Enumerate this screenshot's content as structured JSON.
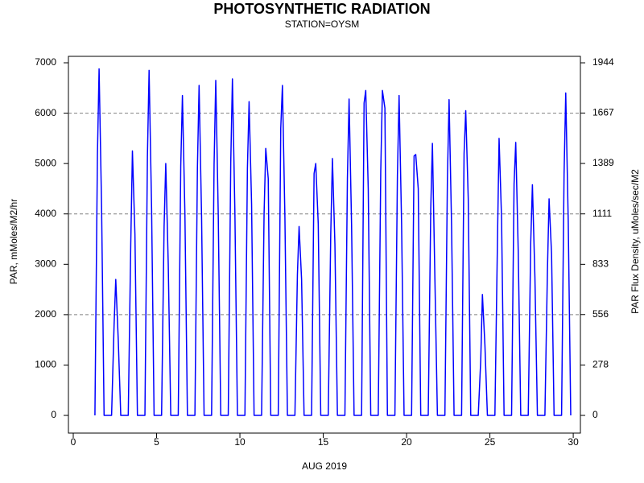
{
  "chart_data": {
    "type": "line",
    "title": "PHOTOSYNTHETIC RADIATION",
    "subtitle": "STATION=OYSM",
    "xlabel": "AUG 2019",
    "ylabel": "PAR, mMoles/M2/hr",
    "y2label": "PAR Flux Density, uMoles/sec/M2",
    "xlim": [
      -0.29,
      30.43
    ],
    "xticks": [
      0,
      5,
      10,
      15,
      20,
      25,
      30
    ],
    "ylim": [
      -351,
      7128
    ],
    "yticks": [
      0,
      1000,
      2000,
      3000,
      4000,
      5000,
      6000,
      7000
    ],
    "y2lim": [
      -97.5,
      1979.6
    ],
    "y2ticks": [
      0,
      278,
      556,
      833,
      1111,
      1389,
      1667,
      1944
    ],
    "ygrid": [
      2000,
      4000,
      6000
    ],
    "x": [
      1.3,
      1.45,
      1.55,
      1.7,
      1.85,
      2.3,
      2.45,
      2.55,
      2.7,
      2.85,
      3.3,
      3.45,
      3.55,
      3.7,
      3.85,
      4.3,
      4.45,
      4.55,
      4.7,
      4.85,
      5.3,
      5.45,
      5.55,
      5.7,
      5.85,
      6.3,
      6.45,
      6.55,
      6.7,
      6.85,
      7.3,
      7.45,
      7.55,
      7.7,
      7.85,
      8.3,
      8.45,
      8.55,
      8.7,
      8.85,
      9.3,
      9.45,
      9.55,
      9.7,
      9.85,
      10.3,
      10.45,
      10.55,
      10.7,
      10.85,
      11.3,
      11.45,
      11.55,
      11.7,
      11.85,
      12.3,
      12.45,
      12.55,
      12.7,
      12.85,
      13.3,
      13.45,
      13.55,
      13.7,
      13.85,
      14.3,
      14.45,
      14.55,
      14.7,
      14.85,
      15.3,
      15.45,
      15.55,
      15.7,
      15.85,
      16.3,
      16.45,
      16.55,
      16.7,
      16.85,
      17.3,
      17.45,
      17.55,
      17.7,
      17.85,
      18.3,
      18.45,
      18.55,
      18.7,
      18.85,
      19.3,
      19.45,
      19.55,
      19.7,
      19.85,
      20.3,
      20.45,
      20.55,
      20.7,
      20.85,
      21.3,
      21.45,
      21.55,
      21.7,
      21.85,
      22.3,
      22.45,
      22.55,
      22.7,
      22.85,
      23.3,
      23.45,
      23.55,
      23.7,
      23.85,
      24.3,
      24.45,
      24.55,
      24.7,
      24.85,
      25.3,
      25.45,
      25.55,
      25.7,
      25.85,
      26.3,
      26.45,
      26.55,
      26.7,
      26.85,
      27.3,
      27.45,
      27.55,
      27.7,
      27.85,
      28.3,
      28.45,
      28.55,
      28.7,
      28.85,
      29.3,
      29.45,
      29.55,
      29.7,
      29.85
    ],
    "series": [
      {
        "name": "PAR",
        "color": "#0000ff",
        "values": [
          0,
          5160,
          6880,
          4130,
          0,
          0,
          1800,
          2700,
          1500,
          0,
          0,
          3400,
          5250,
          3600,
          0,
          0,
          5140,
          6850,
          4110,
          0,
          0,
          3750,
          5000,
          3000,
          0,
          0,
          4950,
          6350,
          4000,
          0,
          0,
          4910,
          6550,
          3930,
          0,
          0,
          4990,
          6650,
          3990,
          0,
          0,
          5010,
          6680,
          4010,
          0,
          0,
          4900,
          6230,
          4200,
          0,
          0,
          4000,
          5300,
          4700,
          0,
          0,
          5700,
          6550,
          3930,
          0,
          0,
          2800,
          3750,
          2700,
          0,
          0,
          4800,
          5000,
          3800,
          0,
          0,
          3600,
          5100,
          3400,
          0,
          0,
          4710,
          6280,
          3770,
          0,
          0,
          6200,
          6450,
          4500,
          0,
          0,
          4840,
          6450,
          6100,
          0,
          0,
          4760,
          6350,
          3810,
          0,
          0,
          5150,
          5180,
          4500,
          0,
          0,
          4100,
          5400,
          2700,
          0,
          0,
          4700,
          6270,
          3760,
          0,
          0,
          5200,
          6050,
          4300,
          0,
          0,
          1100,
          2400,
          1400,
          0,
          0,
          3400,
          5500,
          3900,
          0,
          0,
          4600,
          5420,
          3250,
          0,
          0,
          3440,
          4580,
          2750,
          0,
          0,
          2850,
          4300,
          3200,
          0,
          0,
          4800,
          6400,
          3840,
          0
        ]
      }
    ]
  }
}
